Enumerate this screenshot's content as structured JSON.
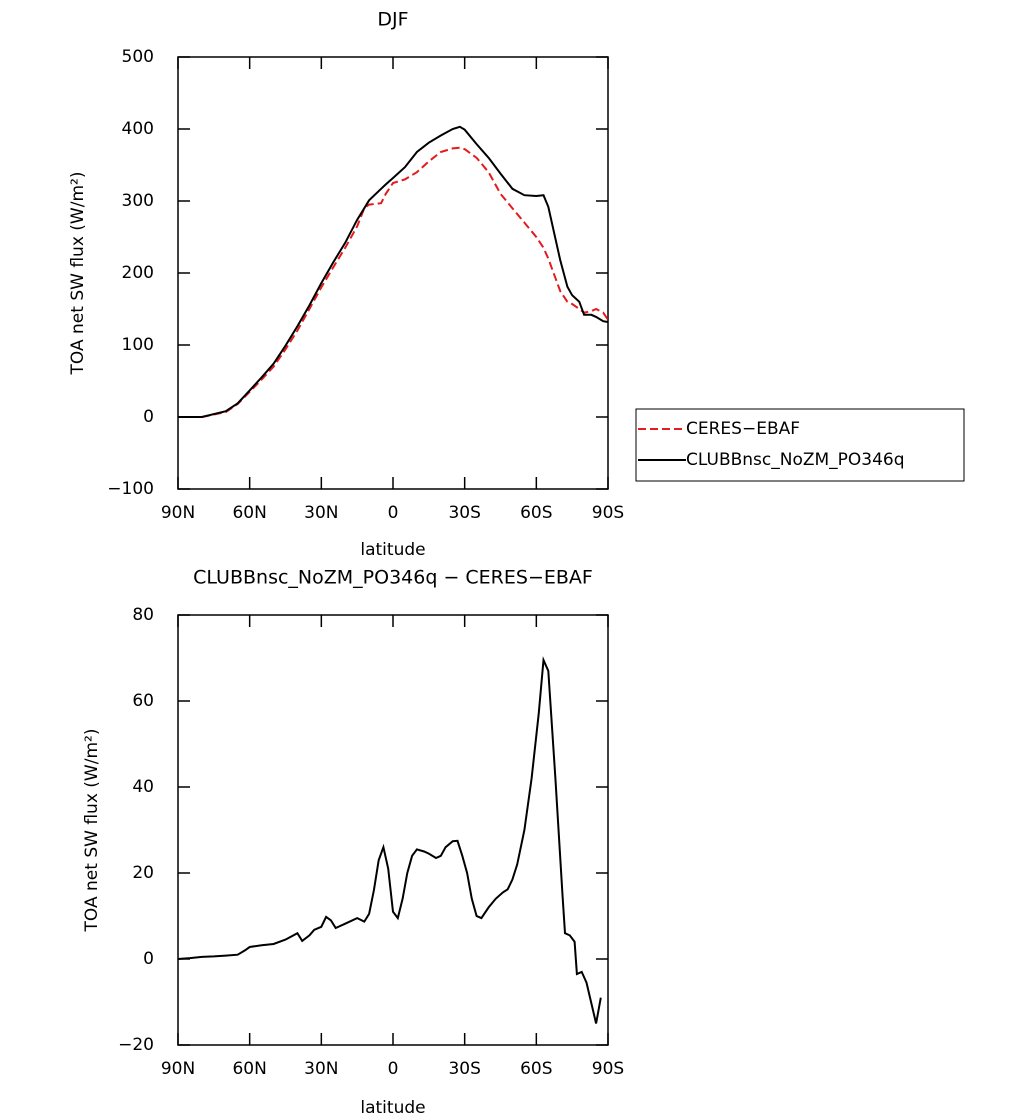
{
  "chart_data": [
    {
      "type": "line",
      "title": "DJF",
      "xlabel": "latitude",
      "ylabel": "TOA net SW flux (W/m²)",
      "x": [
        90,
        80,
        70,
        65,
        60,
        55,
        50,
        45,
        40,
        35,
        30,
        25,
        20,
        15,
        12,
        10,
        5,
        3,
        0,
        -5,
        -10,
        -15,
        -20,
        -25,
        -28,
        -30,
        -35,
        -40,
        -45,
        -50,
        -55,
        -60,
        -63,
        -65,
        -70,
        -73,
        -75,
        -78,
        -80,
        -83,
        -85,
        -88,
        -90
      ],
      "series": [
        {
          "name": "CERES−EBAF",
          "color": "#e41a1c",
          "style": "dashed",
          "values": [
            0,
            0,
            7,
            18,
            35,
            52,
            70,
            94,
            120,
            150,
            180,
            208,
            235,
            265,
            290,
            295,
            297,
            310,
            325,
            330,
            340,
            355,
            368,
            373,
            374,
            372,
            360,
            340,
            310,
            290,
            270,
            250,
            235,
            220,
            175,
            160,
            157,
            150,
            145,
            147,
            150,
            145,
            135
          ]
        },
        {
          "name": "CLUBBnsc_NoZM_PO346q",
          "color": "#000000",
          "style": "solid",
          "values": [
            0,
            0,
            8,
            19,
            37,
            55,
            74,
            99,
            126,
            155,
            186,
            215,
            242,
            274,
            290,
            301,
            317,
            323,
            332,
            347,
            368,
            381,
            391,
            400,
            403,
            399,
            379,
            360,
            338,
            317,
            308,
            307,
            308,
            292,
            218,
            181,
            169,
            160,
            142,
            142,
            139,
            133,
            132
          ]
        }
      ],
      "xlim": [
        90,
        -90
      ],
      "xticks": [
        {
          "value": 90,
          "label": "90N"
        },
        {
          "value": 60,
          "label": "60N"
        },
        {
          "value": 30,
          "label": "30N"
        },
        0,
        {
          "value": -30,
          "label": "30S"
        },
        {
          "value": -60,
          "label": "60S"
        },
        {
          "value": -90,
          "label": "90S"
        }
      ],
      "ylim": [
        -100,
        500
      ],
      "yticks": [
        {
          "value": -100,
          "label": "−100"
        },
        0,
        100,
        200,
        300,
        400,
        500
      ],
      "legend": "right"
    },
    {
      "type": "line",
      "title": "CLUBBnsc_NoZM_PO346q − CERES−EBAF",
      "xlabel": "latitude",
      "ylabel": "TOA net SW flux (W/m²)",
      "x": [
        90,
        85,
        80,
        75,
        70,
        65,
        62,
        60,
        55,
        50,
        45,
        40,
        38,
        35,
        33,
        30,
        28,
        26,
        24,
        20,
        15,
        12,
        10,
        8,
        6,
        4,
        2,
        0,
        -2,
        -4,
        -6,
        -8,
        -10,
        -13,
        -15,
        -18,
        -20,
        -22,
        -25,
        -27,
        -29,
        -31,
        -33,
        -35,
        -37,
        -40,
        -43,
        -46,
        -48,
        -50,
        -52,
        -55,
        -58,
        -61,
        -63,
        -65,
        -68,
        -71,
        -72,
        -74,
        -76,
        -77,
        -79,
        -81,
        -85,
        -87
      ],
      "color": "#000000",
      "values": [
        0,
        0.2,
        0.5,
        0.6,
        0.8,
        1,
        2,
        2.8,
        3.2,
        3.5,
        4.5,
        6,
        4.2,
        5.5,
        6.8,
        7.5,
        9.8,
        9,
        7.2,
        8.2,
        9.5,
        8.7,
        10.5,
        16,
        23,
        26,
        21,
        11,
        9.5,
        14,
        20,
        24,
        25.5,
        25,
        24.5,
        23.5,
        24,
        26,
        27.4,
        27.5,
        24,
        20,
        14,
        10,
        9.5,
        12,
        14,
        15.5,
        16.2,
        18.5,
        22,
        30,
        42,
        57,
        69.5,
        67,
        42,
        14.5,
        6,
        5.5,
        4,
        -3.5,
        -3,
        -5.5,
        -15,
        -9
      ],
      "xlim": [
        90,
        -90
      ],
      "xticks": [
        {
          "value": 90,
          "label": "90N"
        },
        {
          "value": 60,
          "label": "60N"
        },
        {
          "value": 30,
          "label": "30N"
        },
        0,
        {
          "value": -30,
          "label": "30S"
        },
        {
          "value": -60,
          "label": "60S"
        },
        {
          "value": -90,
          "label": "90S"
        }
      ],
      "ylim": [
        -20,
        80
      ],
      "yticks": [
        {
          "value": -20,
          "label": "−20"
        },
        0,
        20,
        40,
        60,
        80
      ]
    }
  ]
}
